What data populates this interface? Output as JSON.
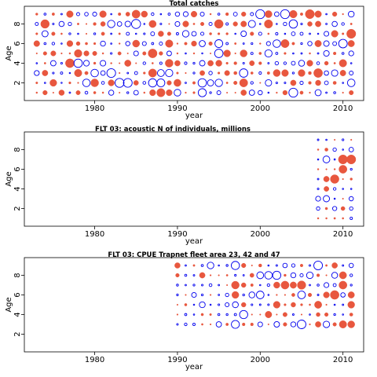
{
  "chart_data": [
    {
      "type": "scatter",
      "title": "Total catches",
      "xlabel": "year",
      "ylabel": "Age",
      "xlim": [
        1971.5,
        2012.5
      ],
      "ylim": [
        0.2,
        9.8
      ],
      "x_ticks": [
        "1980",
        "1990",
        "2000",
        "2010"
      ],
      "y_ticks": [
        "2",
        "4",
        "6",
        "8"
      ],
      "x_tick_values": [
        1980,
        1990,
        2000,
        2010
      ],
      "y_tick_values": [
        2,
        4,
        6,
        8
      ],
      "years": [
        1973,
        2011
      ],
      "ages": [
        1,
        9
      ],
      "marker_legend": {
        "positive_residual": "open blue circle",
        "negative_residual": "filled red circle"
      },
      "colors": {
        "positive": "#0000ee",
        "negative": "#e8573e"
      },
      "seed": 11
    },
    {
      "type": "scatter",
      "title": "FLT 03:   acoustic   N of individuals, millions",
      "xlabel": "year",
      "ylabel": "Age",
      "xlim": [
        1971.5,
        2012.5
      ],
      "ylim": [
        0.2,
        9.8
      ],
      "x_ticks": [
        "1980",
        "1990",
        "2000",
        "2010"
      ],
      "y_ticks": [
        "2",
        "4",
        "6",
        "8"
      ],
      "x_tick_values": [
        1980,
        1990,
        2000,
        2010
      ],
      "y_tick_values": [
        2,
        4,
        6,
        8
      ],
      "years": [
        2007,
        2011
      ],
      "ages": [
        1,
        9
      ],
      "marker_legend": {
        "positive_residual": "open blue circle",
        "negative_residual": "filled red circle"
      },
      "colors": {
        "positive": "#0000ee",
        "negative": "#e8573e"
      },
      "seed": 23
    },
    {
      "type": "scatter",
      "title": "FLT 03: CPUE Trapnet fleet area 23, 42 and 47",
      "xlabel": "year",
      "ylabel": "Age",
      "xlim": [
        1971.5,
        2012.5
      ],
      "ylim": [
        0.2,
        9.8
      ],
      "x_ticks": [
        "1980",
        "1990",
        "2000",
        "2010"
      ],
      "y_ticks": [
        "2",
        "4",
        "6",
        "8"
      ],
      "x_tick_values": [
        1980,
        1990,
        2000,
        2010
      ],
      "y_tick_values": [
        2,
        4,
        6,
        8
      ],
      "years": [
        1990,
        2011
      ],
      "ages": [
        3,
        9
      ],
      "marker_legend": {
        "positive_residual": "open blue circle",
        "negative_residual": "filled red circle"
      },
      "colors": {
        "positive": "#0000ee",
        "negative": "#e8573e"
      },
      "seed": 37
    }
  ]
}
